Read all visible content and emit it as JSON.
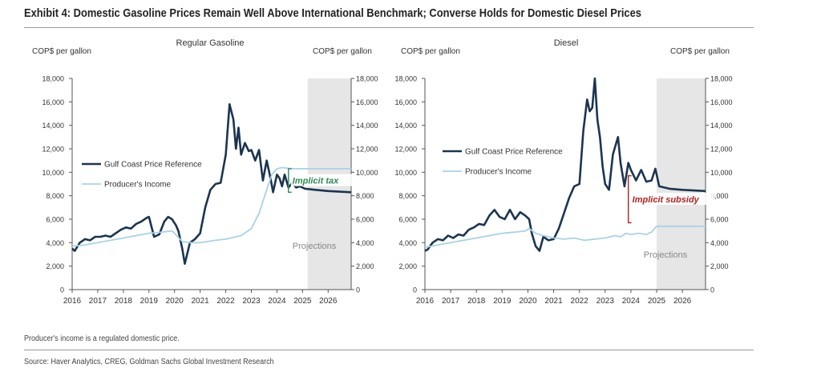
{
  "title": "Exhibit 4: Domestic Gasoline Prices Remain Well Above International Benchmark; Converse Holds for Domestic Diesel Prices",
  "footnote": "Producer's income is a regulated domestic price.",
  "source": "Source: Haver Analytics, CREG, Goldman Sachs Global Investment Research",
  "colors": {
    "gulf": "#1b3550",
    "producer": "#a8d2e8",
    "tax": "#2e8b57",
    "subsidy": "#b22222",
    "projection": "#e6e6e6"
  },
  "chart_data": [
    {
      "type": "line",
      "title": "Regular Gasoline",
      "ylabel_left": "COP$ per gallon",
      "ylabel_right": "COP$ per gallon",
      "xlim": [
        2016,
        2026.9
      ],
      "ylim": [
        0,
        18000
      ],
      "x_ticks": [
        2016,
        2017,
        2018,
        2019,
        2020,
        2021,
        2022,
        2023,
        2024,
        2025,
        2026
      ],
      "y_ticks": [
        0,
        2000,
        4000,
        6000,
        8000,
        10000,
        12000,
        14000,
        16000,
        18000
      ],
      "y_tick_labels": [
        "0",
        "2,000",
        "4,000",
        "6,000",
        "8,000",
        "10,000",
        "12,000",
        "14,000",
        "16,000",
        "18,000"
      ],
      "projection_start": 2025.2,
      "projection_label": "Projections",
      "annotation": {
        "label": "Implicit tax",
        "x": 2024.45,
        "y_low": 8300,
        "y_high": 10300
      },
      "legend": {
        "position": "left-middle",
        "entries": [
          "Gulf Coast Price Reference",
          "Producer's Income"
        ]
      },
      "series": [
        {
          "name": "Gulf Coast Price Reference",
          "x": [
            2016,
            2016.1,
            2016.3,
            2016.5,
            2016.7,
            2016.9,
            2017.1,
            2017.3,
            2017.5,
            2017.7,
            2017.9,
            2018.1,
            2018.3,
            2018.5,
            2018.7,
            2018.9,
            2019.0,
            2019.2,
            2019.4,
            2019.6,
            2019.75,
            2019.9,
            2020.05,
            2020.15,
            2020.3,
            2020.4,
            2020.6,
            2020.8,
            2021.0,
            2021.2,
            2021.4,
            2021.6,
            2021.8,
            2022.0,
            2022.15,
            2022.3,
            2022.4,
            2022.5,
            2022.6,
            2022.75,
            2022.9,
            2023.0,
            2023.15,
            2023.3,
            2023.45,
            2023.6,
            2023.75,
            2023.85,
            2024.0,
            2024.1,
            2024.2,
            2024.3,
            2024.45,
            2024.6,
            2024.75,
            2024.9,
            2025.1,
            2025.5,
            2026.0,
            2026.9
          ],
          "values": [
            3500,
            3300,
            4000,
            4300,
            4200,
            4500,
            4500,
            4600,
            4500,
            4800,
            5100,
            5300,
            5200,
            5600,
            5800,
            6100,
            6200,
            4500,
            4700,
            5800,
            6200,
            6000,
            5500,
            5000,
            3500,
            2200,
            4000,
            4300,
            4800,
            7000,
            8500,
            9000,
            9100,
            11500,
            15800,
            14500,
            12000,
            13800,
            11500,
            12500,
            11800,
            11900,
            11000,
            11900,
            9300,
            11000,
            9500,
            8300,
            9800,
            9500,
            8800,
            9800,
            8700,
            9100,
            8700,
            8800,
            8600,
            8500,
            8400,
            8300
          ]
        },
        {
          "name": "Producer's Income",
          "x": [
            2016,
            2016.5,
            2017,
            2017.5,
            2018,
            2018.5,
            2019,
            2019.5,
            2019.9,
            2020.0,
            2020.3,
            2020.6,
            2021,
            2021.3,
            2021.6,
            2022,
            2022.6,
            2023,
            2023.3,
            2023.6,
            2023.8,
            2024,
            2024.2,
            2024.6,
            2025,
            2026,
            2026.9
          ],
          "values": [
            3700,
            3800,
            4000,
            4200,
            4400,
            4600,
            4800,
            4900,
            5000,
            4800,
            4100,
            4000,
            4000,
            4100,
            4200,
            4300,
            4600,
            5200,
            6500,
            8500,
            9800,
            10300,
            10400,
            10300,
            10300,
            10300,
            10300
          ]
        }
      ]
    },
    {
      "type": "line",
      "title": "Diesel",
      "ylabel_left": "COP$ per gallon",
      "ylabel_right": "COP$ per gallon",
      "xlim": [
        2016,
        2026.9
      ],
      "ylim": [
        0,
        18000
      ],
      "x_ticks": [
        2016,
        2017,
        2018,
        2019,
        2020,
        2021,
        2022,
        2023,
        2024,
        2025,
        2026
      ],
      "y_ticks": [
        0,
        2000,
        4000,
        6000,
        8000,
        10000,
        12000,
        14000,
        16000,
        18000
      ],
      "y_tick_labels": [
        "0",
        "2,000",
        "4,000",
        "6,000",
        "8,000",
        "10,000",
        "12,000",
        "14,000",
        "16,000",
        "18,000"
      ],
      "projection_start": 2025.0,
      "projection_label": "Projections",
      "annotation": {
        "label": "Implicit subsidy",
        "x": 2023.9,
        "y_low": 5700,
        "y_high": 9700
      },
      "legend": {
        "position": "top-left",
        "entries": [
          "Gulf Coast Price Reference",
          "Producer's Income"
        ]
      },
      "series": [
        {
          "name": "Gulf Coast Price Reference",
          "x": [
            2016,
            2016.1,
            2016.3,
            2016.5,
            2016.7,
            2016.9,
            2017.1,
            2017.3,
            2017.5,
            2017.7,
            2017.9,
            2018.1,
            2018.3,
            2018.5,
            2018.7,
            2018.9,
            2019.1,
            2019.3,
            2019.5,
            2019.7,
            2019.9,
            2020.05,
            2020.15,
            2020.3,
            2020.45,
            2020.6,
            2020.8,
            2021.0,
            2021.2,
            2021.4,
            2021.6,
            2021.8,
            2022.0,
            2022.15,
            2022.3,
            2022.4,
            2022.5,
            2022.6,
            2022.7,
            2022.8,
            2022.9,
            2023.0,
            2023.15,
            2023.3,
            2023.5,
            2023.6,
            2023.75,
            2023.9,
            2024.0,
            2024.2,
            2024.4,
            2024.6,
            2024.8,
            2024.95,
            2025.1,
            2025.5,
            2026.0,
            2026.9
          ],
          "values": [
            3300,
            3400,
            4000,
            4300,
            4200,
            4600,
            4400,
            4700,
            4600,
            5100,
            5300,
            5600,
            5500,
            6300,
            6800,
            6200,
            6000,
            6800,
            6000,
            6600,
            6300,
            6000,
            4800,
            3700,
            3300,
            4500,
            4200,
            4300,
            5200,
            6500,
            7800,
            8800,
            9000,
            13500,
            16200,
            15200,
            15500,
            18000,
            14500,
            13000,
            10500,
            9000,
            8500,
            11500,
            13000,
            10800,
            8800,
            10800,
            10200,
            9300,
            10200,
            9200,
            9300,
            10300,
            8800,
            8600,
            8500,
            8400
          ]
        },
        {
          "name": "Producer's Income",
          "x": [
            2016,
            2016.5,
            2017,
            2017.5,
            2018,
            2018.5,
            2019,
            2019.5,
            2019.9,
            2020.05,
            2020.3,
            2020.6,
            2021,
            2021.4,
            2021.8,
            2022.2,
            2022.6,
            2023,
            2023.4,
            2023.6,
            2023.8,
            2024,
            2024.3,
            2024.6,
            2024.8,
            2025.0,
            2025.3,
            2026,
            2026.9
          ],
          "values": [
            3600,
            3800,
            4000,
            4200,
            4400,
            4600,
            4800,
            4900,
            5000,
            5200,
            4800,
            4600,
            4400,
            4300,
            4400,
            4200,
            4300,
            4400,
            4600,
            4500,
            4800,
            4700,
            4800,
            4700,
            4900,
            5400,
            5400,
            5400,
            5400
          ]
        }
      ]
    }
  ]
}
